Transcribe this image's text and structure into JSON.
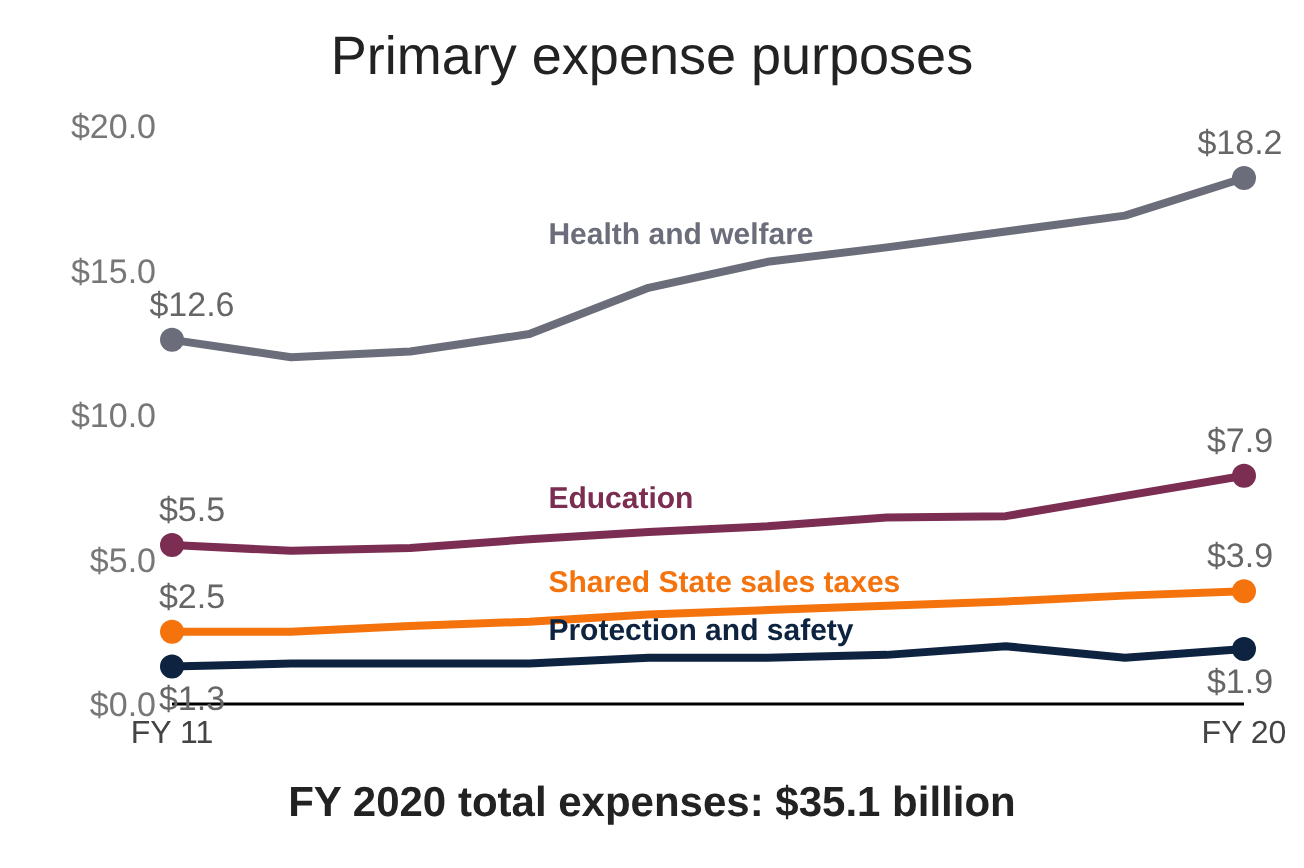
{
  "chart_data": {
    "type": "line",
    "title": "Primary expense purposes",
    "xlabel": "FY 2020 total expenses: $35.1 billion",
    "categories": [
      "FY 11",
      null,
      null,
      null,
      null,
      null,
      null,
      null,
      null,
      "FY 20"
    ],
    "ylim": [
      0,
      20
    ],
    "yticks": [
      {
        "value": 0,
        "label": "$0.0"
      },
      {
        "value": 5,
        "label": "$5.0"
      },
      {
        "value": 10,
        "label": "$10.0"
      },
      {
        "value": 15,
        "label": "$15.0"
      },
      {
        "value": 20,
        "label": "$20.0"
      }
    ],
    "grid": false,
    "legend": false,
    "line_style": "solid",
    "series": [
      {
        "name": "Health and welfare",
        "color": "#6b6e7a",
        "values": [
          12.6,
          12.0,
          12.2,
          12.8,
          14.4,
          15.3,
          15.8,
          16.35,
          16.9,
          18.2
        ],
        "value_labels": [
          "$12.6",
          null,
          null,
          null,
          null,
          null,
          null,
          null,
          null,
          "$18.2"
        ]
      },
      {
        "name": "Education",
        "color": "#7b2d52",
        "values": [
          5.5,
          5.3,
          5.4,
          5.7,
          5.95,
          6.15,
          6.45,
          6.5,
          7.2,
          7.9
        ],
        "value_labels": [
          "$5.5",
          null,
          null,
          null,
          null,
          null,
          null,
          null,
          null,
          "$7.9"
        ]
      },
      {
        "name": "Shared State sales taxes",
        "color": "#f5730d",
        "values": [
          2.5,
          2.5,
          2.7,
          2.85,
          3.1,
          3.25,
          3.4,
          3.55,
          3.75,
          3.9
        ],
        "value_labels": [
          "$2.5",
          null,
          null,
          null,
          null,
          null,
          null,
          null,
          null,
          "$3.9"
        ]
      },
      {
        "name": "Protection and safety",
        "color": "#0d2340",
        "values": [
          1.3,
          1.4,
          1.4,
          1.4,
          1.6,
          1.6,
          1.7,
          2.0,
          1.6,
          1.9
        ],
        "value_labels": [
          "$1.3",
          null,
          null,
          null,
          null,
          null,
          null,
          null,
          null,
          "$1.9"
        ]
      }
    ]
  }
}
